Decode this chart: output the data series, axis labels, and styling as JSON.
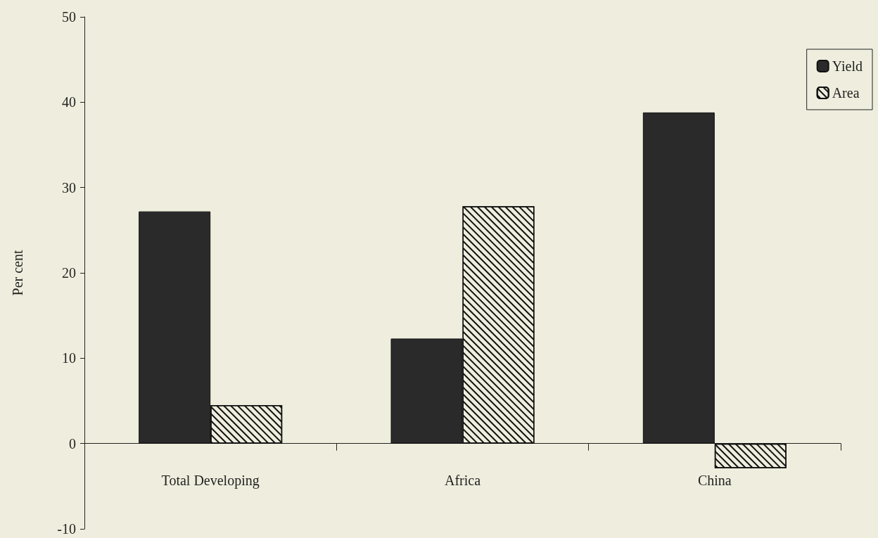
{
  "chart_data": {
    "type": "bar",
    "ylabel": "Per cent",
    "categories": [
      "Total Developing",
      "Africa",
      "China"
    ],
    "series": [
      {
        "name": "Yield",
        "color": "#2b2a2a",
        "values": [
          27.2,
          12.3,
          38.8
        ]
      },
      {
        "name": "Area",
        "color": "#efeede",
        "values": [
          4.5,
          27.8,
          -2.9
        ]
      }
    ],
    "ylim": [
      -10,
      50
    ],
    "yticks": [
      -10,
      0,
      10,
      20,
      30,
      40,
      50
    ],
    "grid": false,
    "legend": "top right"
  }
}
